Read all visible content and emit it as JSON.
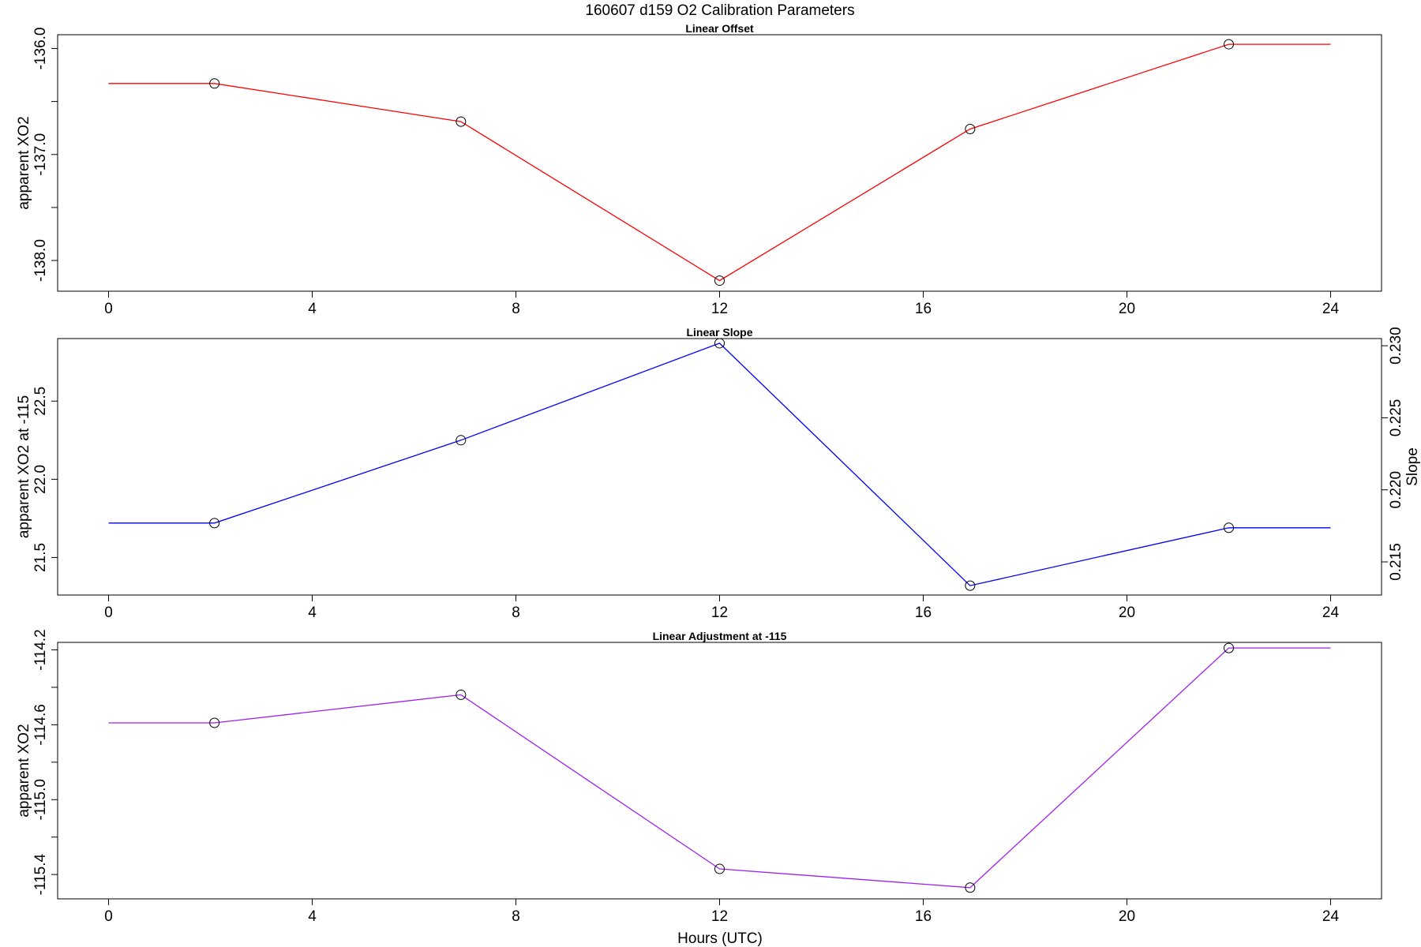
{
  "figure": {
    "title": "160607   d159   O2 Calibration Parameters",
    "xlabel": "Hours (UTC)"
  },
  "chart_data": [
    {
      "type": "line",
      "title": "Linear Offset",
      "xlabel": "",
      "ylabel": "apparent XO2",
      "color": "#ff0000",
      "xlim": [
        -1,
        25
      ],
      "ylim": [
        -138.29,
        -135.87
      ],
      "xticks": [
        "0",
        "4",
        "8",
        "12",
        "16",
        "20",
        "24"
      ],
      "xtick_values": [
        0,
        4,
        8,
        12,
        16,
        20,
        24
      ],
      "yticks": [
        "-136.0",
        "-137.0",
        "-138.0"
      ],
      "ytick_values": [
        -136.0,
        -137.0,
        -138.0
      ],
      "yminor_values": [
        -136.5,
        -137.5
      ],
      "x": [
        0,
        2.08,
        6.92,
        12.0,
        16.92,
        22.0,
        24.0
      ],
      "y": [
        -136.33,
        -136.33,
        -136.69,
        -138.19,
        -136.76,
        -135.96,
        -135.96
      ],
      "markers": [
        false,
        true,
        true,
        true,
        true,
        true,
        false
      ]
    },
    {
      "type": "line",
      "title": "Linear Slope",
      "xlabel": "",
      "ylabel": "apparent XO2 at -115",
      "ylabel_right": "Slope",
      "color": "#0000ff",
      "xlim": [
        -1,
        25
      ],
      "ylim": [
        21.26,
        22.9
      ],
      "xticks": [
        "0",
        "4",
        "8",
        "12",
        "16",
        "20",
        "24"
      ],
      "xtick_values": [
        0,
        4,
        8,
        12,
        16,
        20,
        24
      ],
      "yticks": [
        "21.5",
        "22.0",
        "22.5"
      ],
      "ytick_values": [
        21.5,
        22.0,
        22.5
      ],
      "y2lim": [
        0.2127,
        0.2305
      ],
      "y2ticks": [
        "0.215",
        "0.220",
        "0.225",
        "0.230"
      ],
      "y2tick_values": [
        0.215,
        0.22,
        0.225,
        0.23
      ],
      "x": [
        0,
        2.08,
        6.92,
        12.0,
        16.92,
        22.0,
        24.0
      ],
      "y": [
        21.72,
        21.72,
        22.25,
        22.87,
        21.32,
        21.69,
        21.69
      ],
      "markers": [
        false,
        true,
        true,
        true,
        true,
        true,
        false
      ]
    },
    {
      "type": "line",
      "title": "Linear Adjustment at -115",
      "xlabel": "Hours (UTC)",
      "ylabel": "apparent XO2",
      "color": "#a020f0",
      "xlim": [
        -1,
        25
      ],
      "ylim": [
        -115.53,
        -114.16
      ],
      "xticks": [
        "0",
        "4",
        "8",
        "12",
        "16",
        "20",
        "24"
      ],
      "xtick_values": [
        0,
        4,
        8,
        12,
        16,
        20,
        24
      ],
      "yticks": [
        "-114.2",
        "-114.6",
        "-115.0",
        "-115.4"
      ],
      "ytick_values": [
        -114.2,
        -114.6,
        -115.0,
        -115.4
      ],
      "yminor_values": [
        -114.4,
        -114.8,
        -115.2
      ],
      "x": [
        0,
        2.08,
        6.92,
        12.0,
        16.92,
        22.0,
        24.0
      ],
      "y": [
        -114.59,
        -114.59,
        -114.44,
        -115.37,
        -115.47,
        -114.19,
        -114.19
      ],
      "markers": [
        false,
        true,
        true,
        true,
        true,
        true,
        false
      ]
    }
  ]
}
